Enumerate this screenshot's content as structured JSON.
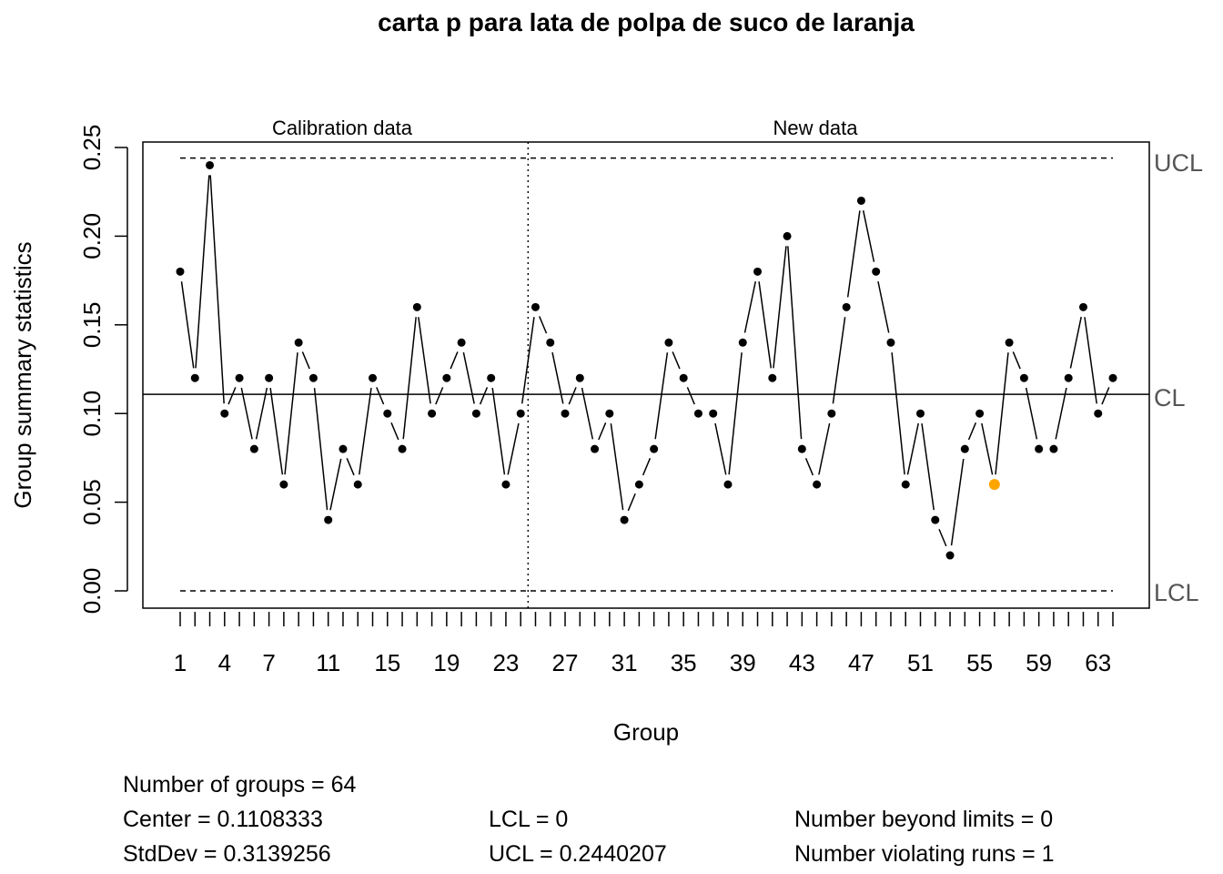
{
  "chart_data": {
    "type": "line",
    "title": "carta p para lata de polpa de suco de laranja",
    "xlabel": "Group",
    "ylabel": "Group summary statistics",
    "ylim": [
      0,
      0.25
    ],
    "yticks": [
      "0.00",
      "0.05",
      "0.10",
      "0.15",
      "0.20",
      "0.25"
    ],
    "xtick_labels": [
      "1",
      "4",
      "7",
      "11",
      "15",
      "19",
      "23",
      "27",
      "31",
      "35",
      "39",
      "43",
      "47",
      "51",
      "55",
      "59",
      "63"
    ],
    "section_labels": {
      "calibration": "Calibration data",
      "new": "New data"
    },
    "calibration_groups": 24,
    "center": 0.1108333,
    "ucl": 0.2440207,
    "lcl": 0,
    "limit_labels": {
      "ucl": "UCL",
      "cl": "CL",
      "lcl": "LCL"
    },
    "x": [
      1,
      2,
      3,
      4,
      5,
      6,
      7,
      8,
      9,
      10,
      11,
      12,
      13,
      14,
      15,
      16,
      17,
      18,
      19,
      20,
      21,
      22,
      23,
      24,
      25,
      26,
      27,
      28,
      29,
      30,
      31,
      32,
      33,
      34,
      35,
      36,
      37,
      38,
      39,
      40,
      41,
      42,
      43,
      44,
      45,
      46,
      47,
      48,
      49,
      50,
      51,
      52,
      53,
      54,
      55,
      56,
      57,
      58,
      59,
      60,
      61,
      62,
      63,
      64
    ],
    "values": [
      0.18,
      0.12,
      0.24,
      0.1,
      0.12,
      0.08,
      0.12,
      0.06,
      0.14,
      0.12,
      0.04,
      0.08,
      0.06,
      0.12,
      0.1,
      0.08,
      0.16,
      0.1,
      0.12,
      0.14,
      0.1,
      0.12,
      0.06,
      0.1,
      0.16,
      0.14,
      0.1,
      0.12,
      0.08,
      0.1,
      0.04,
      0.06,
      0.08,
      0.14,
      0.12,
      0.1,
      0.1,
      0.06,
      0.14,
      0.18,
      0.12,
      0.2,
      0.08,
      0.06,
      0.1,
      0.16,
      0.22,
      0.18,
      0.14,
      0.06,
      0.1,
      0.04,
      0.02,
      0.08,
      0.1,
      0.06,
      0.14,
      0.12,
      0.08,
      0.08,
      0.12,
      0.16,
      0.1,
      0.12
    ],
    "violating_runs_points": [
      56
    ],
    "colors": {
      "points": "#000000",
      "violating": "#FFA500",
      "limit_labels": "#555555"
    }
  },
  "stats": {
    "groups": "Number of groups = 64",
    "center": "Center = 0.1108333",
    "stddev": "StdDev = 0.3139256",
    "lcl": "LCL = 0",
    "ucl": "UCL = 0.2440207",
    "beyond": "Number beyond limits = 0",
    "violating": "Number violating runs = 1"
  }
}
